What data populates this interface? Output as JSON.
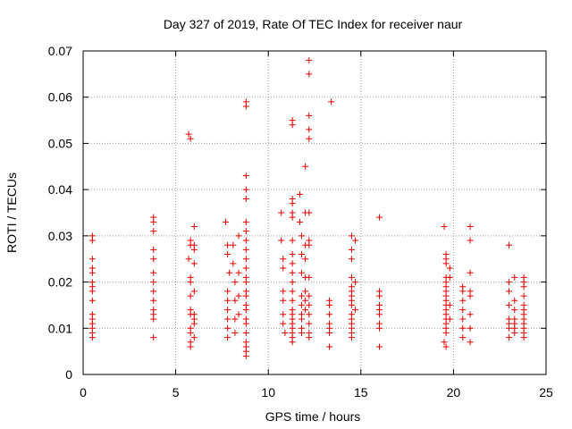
{
  "chart_data": {
    "type": "scatter",
    "title": "Day 327 of 2019, Rate Of TEC Index for receiver naur",
    "xlabel": "GPS time / hours",
    "ylabel": "ROTI / TECUs",
    "xlim": [
      0,
      25
    ],
    "ylim": [
      0,
      0.07
    ],
    "xticks": [
      "0",
      "5",
      "10",
      "15",
      "20",
      "25"
    ],
    "yticks": [
      "0",
      "0.01",
      "0.02",
      "0.03",
      "0.04",
      "0.05",
      "0.06",
      "0.07"
    ],
    "grid": true,
    "marker": "plus",
    "color": "#e00000",
    "series": [
      {
        "points": [
          [
            0.5,
            0.03
          ],
          [
            0.5,
            0.029
          ],
          [
            0.5,
            0.025
          ],
          [
            0.5,
            0.023
          ],
          [
            0.5,
            0.022
          ],
          [
            0.5,
            0.02
          ],
          [
            0.5,
            0.019
          ],
          [
            0.5,
            0.018
          ],
          [
            0.5,
            0.016
          ],
          [
            0.5,
            0.013
          ],
          [
            0.5,
            0.012
          ],
          [
            0.5,
            0.011
          ],
          [
            0.5,
            0.01
          ],
          [
            0.5,
            0.009
          ],
          [
            0.5,
            0.008
          ],
          [
            3.8,
            0.034
          ],
          [
            3.8,
            0.033
          ],
          [
            3.8,
            0.031
          ],
          [
            3.8,
            0.027
          ],
          [
            3.8,
            0.025
          ],
          [
            3.8,
            0.022
          ],
          [
            3.8,
            0.02
          ],
          [
            3.8,
            0.018
          ],
          [
            3.8,
            0.016
          ],
          [
            3.8,
            0.014
          ],
          [
            3.8,
            0.013
          ],
          [
            3.8,
            0.012
          ],
          [
            3.8,
            0.008
          ],
          [
            5.7,
            0.052
          ],
          [
            5.8,
            0.051
          ],
          [
            5.8,
            0.029
          ],
          [
            5.8,
            0.028
          ],
          [
            5.7,
            0.025
          ],
          [
            5.8,
            0.021
          ],
          [
            5.8,
            0.02
          ],
          [
            5.8,
            0.017
          ],
          [
            5.8,
            0.014
          ],
          [
            5.8,
            0.013
          ],
          [
            5.8,
            0.01
          ],
          [
            5.8,
            0.009
          ],
          [
            5.8,
            0.007
          ],
          [
            5.8,
            0.006
          ],
          [
            6.0,
            0.032
          ],
          [
            6.0,
            0.028
          ],
          [
            6.0,
            0.027
          ],
          [
            6.0,
            0.024
          ],
          [
            6.0,
            0.018
          ],
          [
            6.0,
            0.013
          ],
          [
            6.0,
            0.012
          ],
          [
            6.0,
            0.011
          ],
          [
            6.0,
            0.008
          ],
          [
            7.7,
            0.033
          ],
          [
            7.8,
            0.028
          ],
          [
            7.8,
            0.026
          ],
          [
            7.9,
            0.022
          ],
          [
            7.8,
            0.018
          ],
          [
            7.8,
            0.016
          ],
          [
            7.8,
            0.014
          ],
          [
            7.8,
            0.012
          ],
          [
            7.8,
            0.01
          ],
          [
            7.8,
            0.008
          ],
          [
            8.1,
            0.028
          ],
          [
            8.1,
            0.024
          ],
          [
            8.2,
            0.02
          ],
          [
            8.2,
            0.016
          ],
          [
            8.2,
            0.012
          ],
          [
            8.2,
            0.009
          ],
          [
            8.4,
            0.03
          ],
          [
            8.4,
            0.022
          ],
          [
            8.4,
            0.017
          ],
          [
            8.4,
            0.013
          ],
          [
            8.8,
            0.059
          ],
          [
            8.8,
            0.058
          ],
          [
            8.8,
            0.043
          ],
          [
            8.8,
            0.04
          ],
          [
            8.8,
            0.038
          ],
          [
            8.8,
            0.033
          ],
          [
            8.8,
            0.031
          ],
          [
            8.8,
            0.029
          ],
          [
            8.8,
            0.027
          ],
          [
            8.8,
            0.025
          ],
          [
            8.8,
            0.023
          ],
          [
            8.8,
            0.021
          ],
          [
            8.8,
            0.02
          ],
          [
            8.8,
            0.018
          ],
          [
            8.8,
            0.017
          ],
          [
            8.8,
            0.015
          ],
          [
            8.8,
            0.014
          ],
          [
            8.8,
            0.012
          ],
          [
            8.8,
            0.011
          ],
          [
            8.8,
            0.009
          ],
          [
            8.8,
            0.007
          ],
          [
            8.8,
            0.006
          ],
          [
            8.8,
            0.005
          ],
          [
            8.8,
            0.004
          ],
          [
            10.7,
            0.035
          ],
          [
            10.7,
            0.029
          ],
          [
            10.8,
            0.025
          ],
          [
            10.8,
            0.023
          ],
          [
            10.8,
            0.018
          ],
          [
            10.8,
            0.016
          ],
          [
            10.8,
            0.013
          ],
          [
            10.8,
            0.011
          ],
          [
            10.9,
            0.009
          ],
          [
            11.3,
            0.055
          ],
          [
            11.3,
            0.054
          ],
          [
            11.3,
            0.038
          ],
          [
            11.3,
            0.037
          ],
          [
            11.3,
            0.035
          ],
          [
            11.3,
            0.034
          ],
          [
            11.3,
            0.029
          ],
          [
            11.3,
            0.026
          ],
          [
            11.3,
            0.024
          ],
          [
            11.3,
            0.022
          ],
          [
            11.3,
            0.02
          ],
          [
            11.3,
            0.018
          ],
          [
            11.3,
            0.016
          ],
          [
            11.3,
            0.014
          ],
          [
            11.3,
            0.013
          ],
          [
            11.3,
            0.012
          ],
          [
            11.3,
            0.011
          ],
          [
            11.3,
            0.01
          ],
          [
            11.3,
            0.009
          ],
          [
            11.3,
            0.008
          ],
          [
            11.3,
            0.007
          ],
          [
            11.7,
            0.039
          ],
          [
            11.7,
            0.033
          ],
          [
            11.8,
            0.03
          ],
          [
            11.8,
            0.026
          ],
          [
            11.8,
            0.022
          ],
          [
            11.8,
            0.017
          ],
          [
            11.8,
            0.015
          ],
          [
            11.8,
            0.013
          ],
          [
            11.8,
            0.012
          ],
          [
            11.8,
            0.01
          ],
          [
            11.8,
            0.009
          ],
          [
            12.0,
            0.045
          ],
          [
            12.0,
            0.035
          ],
          [
            12.0,
            0.028
          ],
          [
            12.0,
            0.025
          ],
          [
            12.0,
            0.021
          ],
          [
            12.0,
            0.018
          ],
          [
            12.0,
            0.016
          ],
          [
            12.0,
            0.014
          ],
          [
            12.2,
            0.068
          ],
          [
            12.2,
            0.065
          ],
          [
            12.2,
            0.056
          ],
          [
            12.2,
            0.053
          ],
          [
            12.2,
            0.051
          ],
          [
            12.2,
            0.035
          ],
          [
            12.2,
            0.029
          ],
          [
            12.2,
            0.028
          ],
          [
            12.2,
            0.021
          ],
          [
            12.2,
            0.017
          ],
          [
            12.2,
            0.015
          ],
          [
            12.2,
            0.013
          ],
          [
            12.2,
            0.011
          ],
          [
            12.2,
            0.009
          ],
          [
            12.2,
            0.008
          ],
          [
            13.4,
            0.059
          ],
          [
            13.3,
            0.016
          ],
          [
            13.3,
            0.015
          ],
          [
            13.3,
            0.013
          ],
          [
            13.3,
            0.011
          ],
          [
            13.3,
            0.01
          ],
          [
            13.3,
            0.009
          ],
          [
            13.3,
            0.006
          ],
          [
            14.5,
            0.03
          ],
          [
            14.5,
            0.027
          ],
          [
            14.5,
            0.025
          ],
          [
            14.5,
            0.021
          ],
          [
            14.5,
            0.019
          ],
          [
            14.5,
            0.018
          ],
          [
            14.5,
            0.017
          ],
          [
            14.5,
            0.016
          ],
          [
            14.5,
            0.015
          ],
          [
            14.5,
            0.013
          ],
          [
            14.5,
            0.012
          ],
          [
            14.5,
            0.011
          ],
          [
            14.5,
            0.01
          ],
          [
            14.5,
            0.009
          ],
          [
            14.5,
            0.008
          ],
          [
            14.7,
            0.029
          ],
          [
            14.7,
            0.02
          ],
          [
            14.7,
            0.014
          ],
          [
            16.0,
            0.034
          ],
          [
            16.0,
            0.018
          ],
          [
            16.0,
            0.017
          ],
          [
            16.0,
            0.015
          ],
          [
            16.0,
            0.014
          ],
          [
            16.0,
            0.013
          ],
          [
            16.0,
            0.011
          ],
          [
            16.0,
            0.01
          ],
          [
            16.0,
            0.006
          ],
          [
            19.5,
            0.032
          ],
          [
            19.6,
            0.026
          ],
          [
            19.6,
            0.025
          ],
          [
            19.6,
            0.024
          ],
          [
            19.6,
            0.021
          ],
          [
            19.6,
            0.02
          ],
          [
            19.6,
            0.019
          ],
          [
            19.6,
            0.018
          ],
          [
            19.6,
            0.017
          ],
          [
            19.6,
            0.016
          ],
          [
            19.6,
            0.015
          ],
          [
            19.6,
            0.014
          ],
          [
            19.6,
            0.013
          ],
          [
            19.6,
            0.012
          ],
          [
            19.6,
            0.011
          ],
          [
            19.6,
            0.01
          ],
          [
            19.6,
            0.009
          ],
          [
            19.5,
            0.007
          ],
          [
            19.6,
            0.006
          ],
          [
            19.8,
            0.023
          ],
          [
            19.8,
            0.021
          ],
          [
            19.8,
            0.015
          ],
          [
            19.8,
            0.012
          ],
          [
            20.5,
            0.019
          ],
          [
            20.5,
            0.018
          ],
          [
            20.5,
            0.016
          ],
          [
            20.5,
            0.014
          ],
          [
            20.5,
            0.012
          ],
          [
            20.5,
            0.01
          ],
          [
            20.5,
            0.008
          ],
          [
            20.9,
            0.032
          ],
          [
            20.9,
            0.029
          ],
          [
            20.9,
            0.022
          ],
          [
            20.9,
            0.018
          ],
          [
            20.9,
            0.017
          ],
          [
            20.9,
            0.013
          ],
          [
            20.9,
            0.01
          ],
          [
            20.9,
            0.007
          ],
          [
            23.0,
            0.028
          ],
          [
            23.0,
            0.02
          ],
          [
            23.0,
            0.018
          ],
          [
            23.0,
            0.015
          ],
          [
            23.0,
            0.012
          ],
          [
            23.0,
            0.011
          ],
          [
            23.0,
            0.01
          ],
          [
            23.0,
            0.008
          ],
          [
            23.3,
            0.021
          ],
          [
            23.3,
            0.016
          ],
          [
            23.3,
            0.014
          ],
          [
            23.3,
            0.012
          ],
          [
            23.3,
            0.011
          ],
          [
            23.3,
            0.01
          ],
          [
            23.3,
            0.009
          ],
          [
            23.8,
            0.021
          ],
          [
            23.8,
            0.02
          ],
          [
            23.8,
            0.019
          ],
          [
            23.8,
            0.017
          ],
          [
            23.8,
            0.015
          ],
          [
            23.8,
            0.014
          ],
          [
            23.8,
            0.013
          ],
          [
            23.8,
            0.012
          ],
          [
            23.8,
            0.011
          ],
          [
            23.8,
            0.01
          ],
          [
            23.8,
            0.009
          ],
          [
            23.8,
            0.008
          ]
        ]
      }
    ]
  }
}
